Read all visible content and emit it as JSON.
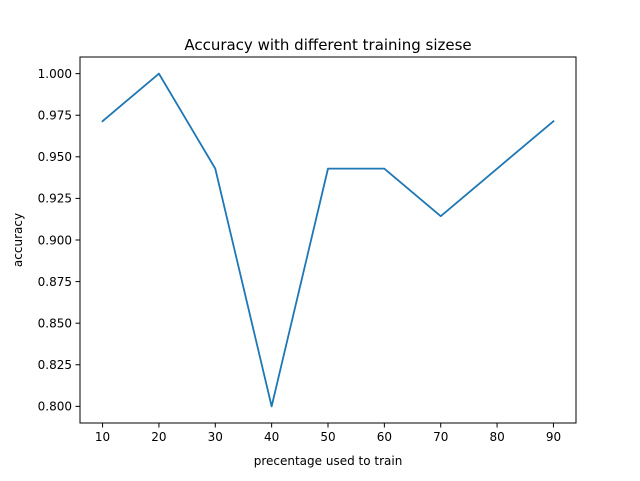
{
  "chart_data": {
    "type": "line",
    "title": "Accuracy with different training sizese",
    "xlabel": "precentage used to train",
    "ylabel": "accuracy",
    "x": [
      10,
      20,
      30,
      40,
      50,
      60,
      70,
      80,
      90
    ],
    "series": [
      {
        "values": [
          0.9714,
          1.0,
          0.9429,
          0.8,
          0.9429,
          0.9429,
          0.9143,
          0.9429,
          0.9714
        ],
        "color": "#1f77b4"
      }
    ],
    "xticks": [
      10,
      20,
      30,
      40,
      50,
      60,
      70,
      80,
      90
    ],
    "yticks": [
      0.8,
      0.825,
      0.85,
      0.875,
      0.9,
      0.925,
      0.95,
      0.975,
      1.0
    ],
    "ytick_labels": [
      "0.800",
      "0.825",
      "0.850",
      "0.875",
      "0.900",
      "0.925",
      "0.950",
      "0.975",
      "1.000"
    ],
    "xlim": [
      6,
      94
    ],
    "ylim": [
      0.79,
      1.01
    ],
    "grid": false
  }
}
